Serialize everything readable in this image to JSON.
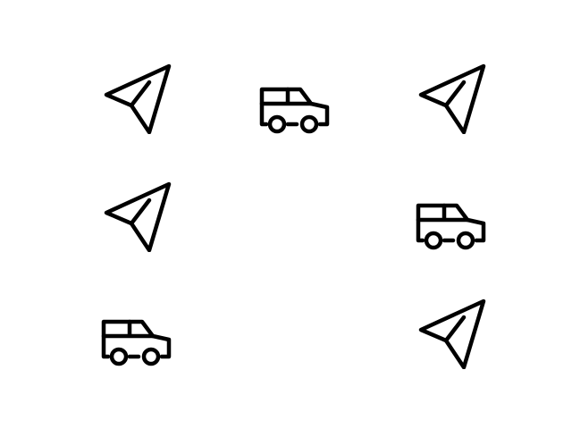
{
  "icon_color": "#000000",
  "background_color": "#ffffff",
  "grid": {
    "rows": 3,
    "columns": 3,
    "cells": [
      {
        "row": 1,
        "column": 1,
        "icon": "send-icon"
      },
      {
        "row": 1,
        "column": 2,
        "icon": "car-icon"
      },
      {
        "row": 1,
        "column": 3,
        "icon": "send-icon"
      },
      {
        "row": 2,
        "column": 1,
        "icon": "send-icon"
      },
      {
        "row": 2,
        "column": 2,
        "icon": "empty"
      },
      {
        "row": 2,
        "column": 3,
        "icon": "car-icon"
      },
      {
        "row": 3,
        "column": 1,
        "icon": "car-icon"
      },
      {
        "row": 3,
        "column": 2,
        "icon": "empty"
      },
      {
        "row": 3,
        "column": 3,
        "icon": "send-icon"
      }
    ]
  }
}
